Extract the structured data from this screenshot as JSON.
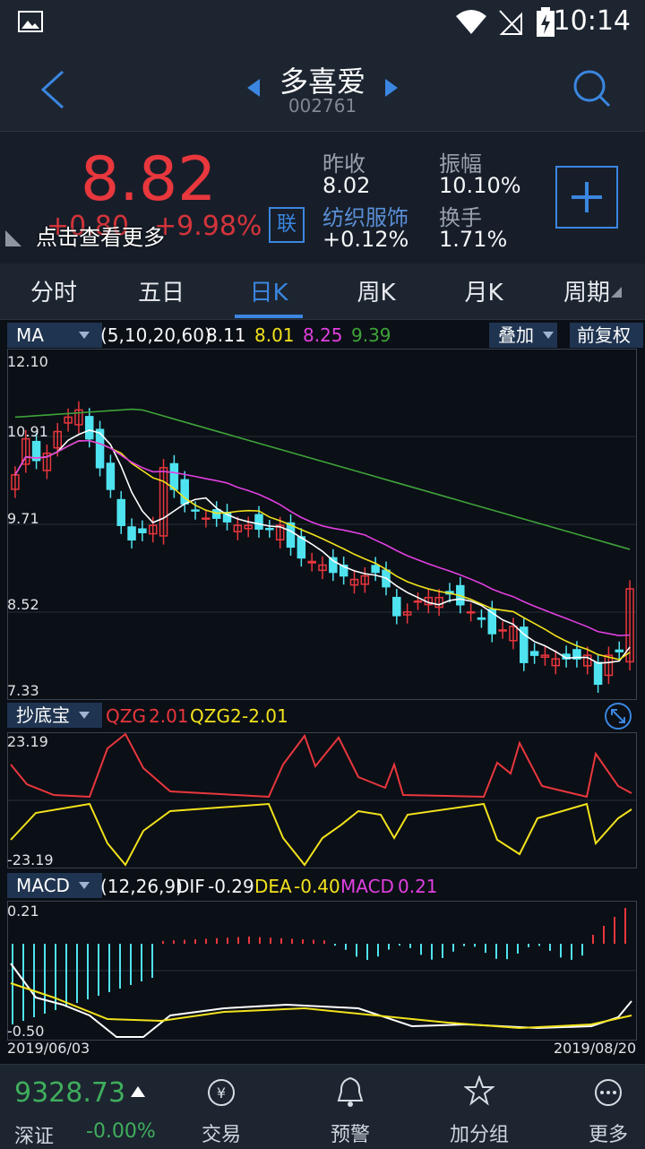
{
  "status_bar": {
    "time": "10:14"
  },
  "header": {
    "title": "多喜爱",
    "code": "002761"
  },
  "quote": {
    "price": "8.82",
    "change": "+0.80",
    "change_pct": "+9.98%",
    "more_hint": "点击查看更多",
    "link_badge": "联",
    "prev_close_label": "昨收",
    "prev_close": "8.02",
    "amplitude_label": "振幅",
    "amplitude": "10.10%",
    "sector": "纺织服饰",
    "sector_change": "+0.12%",
    "turnover_label": "换手",
    "turnover": "1.71%"
  },
  "tabs": [
    "分时",
    "五日",
    "日K",
    "周K",
    "月K",
    "周期"
  ],
  "ma_panel": {
    "button": "MA",
    "params": "(5,10,20,60)",
    "values": [
      "8.11",
      "8.01",
      "8.25",
      "9.39"
    ],
    "overlay_button": "叠加",
    "adjust_button": "前复权",
    "y_labels": [
      "12.10",
      "10.91",
      "9.71",
      "8.52",
      "7.33"
    ]
  },
  "qzg_panel": {
    "button": "抄底宝",
    "qzg_label": "QZG",
    "qzg_value": "2.01",
    "qzg2_label": "QZG2",
    "qzg2_value": "-2.01",
    "y_top": "23.19",
    "y_bottom": "-23.19"
  },
  "macd_panel": {
    "button": "MACD",
    "params": "(12,26,9)",
    "dif_label": "DIF",
    "dif_value": "-0.29",
    "dea_label": "DEA",
    "dea_value": "-0.40",
    "macd_label": "MACD",
    "macd_value": "0.21",
    "y_top": "0.21",
    "y_bottom": "-0.50",
    "date_start": "2019/06/03",
    "date_end": "2019/08/20"
  },
  "bottom_bar": {
    "index_value": "9328.73",
    "index_name": "深证",
    "index_change": "-0.00%",
    "items": [
      "交易",
      "预警",
      "加分组",
      "更多"
    ]
  },
  "colors": {
    "up": "#e8373d",
    "down": "#4fe3f0",
    "ma5": "#ffffff",
    "ma10": "#f2e21c",
    "ma20": "#e040e0",
    "ma60": "#3fa33a",
    "accent": "#3b86e0"
  }
}
